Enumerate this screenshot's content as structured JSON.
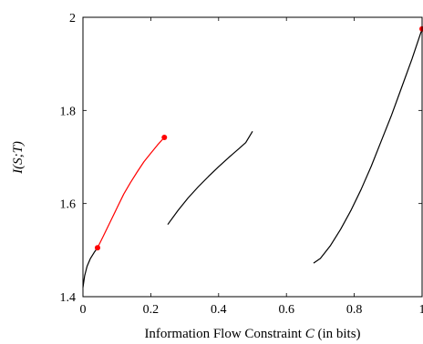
{
  "chart_data": {
    "type": "line",
    "title": "",
    "xlabel_prefix": "Information Flow Constraint ",
    "xlabel_var": "C",
    "xlabel_suffix": " (in bits)",
    "ylabel": "I(S;T)",
    "xlim": [
      0,
      1
    ],
    "ylim": [
      1.4,
      2.0
    ],
    "x_ticks": [
      0,
      0.2,
      0.4,
      0.6,
      0.8,
      1
    ],
    "x_tick_labels": [
      "0",
      "0.2",
      "0.4",
      "0.6",
      "0.8",
      "1"
    ],
    "y_ticks": [
      1.4,
      1.6,
      1.8,
      2.0
    ],
    "y_tick_labels": [
      "1.4",
      "1.6",
      "1.8",
      "2"
    ],
    "grid": false,
    "series": [
      {
        "color": "#000000",
        "points": [
          [
            0.0,
            1.42
          ],
          [
            0.005,
            1.445
          ],
          [
            0.012,
            1.465
          ],
          [
            0.022,
            1.482
          ],
          [
            0.033,
            1.495
          ],
          [
            0.043,
            1.505
          ]
        ]
      },
      {
        "color": "#ff0000",
        "points": [
          [
            0.043,
            1.505
          ],
          [
            0.06,
            1.53
          ],
          [
            0.08,
            1.56
          ],
          [
            0.1,
            1.59
          ],
          [
            0.12,
            1.62
          ],
          [
            0.14,
            1.645
          ],
          [
            0.16,
            1.668
          ],
          [
            0.18,
            1.69
          ],
          [
            0.2,
            1.708
          ],
          [
            0.22,
            1.726
          ],
          [
            0.24,
            1.742
          ]
        ]
      },
      {
        "color": "#000000",
        "points": [
          [
            0.25,
            1.555
          ],
          [
            0.28,
            1.585
          ],
          [
            0.31,
            1.612
          ],
          [
            0.34,
            1.636
          ],
          [
            0.37,
            1.658
          ],
          [
            0.4,
            1.679
          ],
          [
            0.43,
            1.699
          ],
          [
            0.46,
            1.718
          ],
          [
            0.48,
            1.731
          ],
          [
            0.5,
            1.755
          ]
        ]
      },
      {
        "color": "#000000",
        "points": [
          [
            0.68,
            1.472
          ],
          [
            0.7,
            1.482
          ],
          [
            0.73,
            1.51
          ],
          [
            0.76,
            1.545
          ],
          [
            0.79,
            1.585
          ],
          [
            0.82,
            1.63
          ],
          [
            0.85,
            1.68
          ],
          [
            0.88,
            1.735
          ],
          [
            0.91,
            1.79
          ],
          [
            0.94,
            1.85
          ],
          [
            0.97,
            1.91
          ],
          [
            1.0,
            1.975
          ]
        ]
      }
    ],
    "markers": [
      {
        "x": 0.043,
        "y": 1.505,
        "color": "#ff0000"
      },
      {
        "x": 0.24,
        "y": 1.742,
        "color": "#ff0000"
      },
      {
        "x": 1.0,
        "y": 1.975,
        "color": "#ff0000"
      }
    ]
  }
}
